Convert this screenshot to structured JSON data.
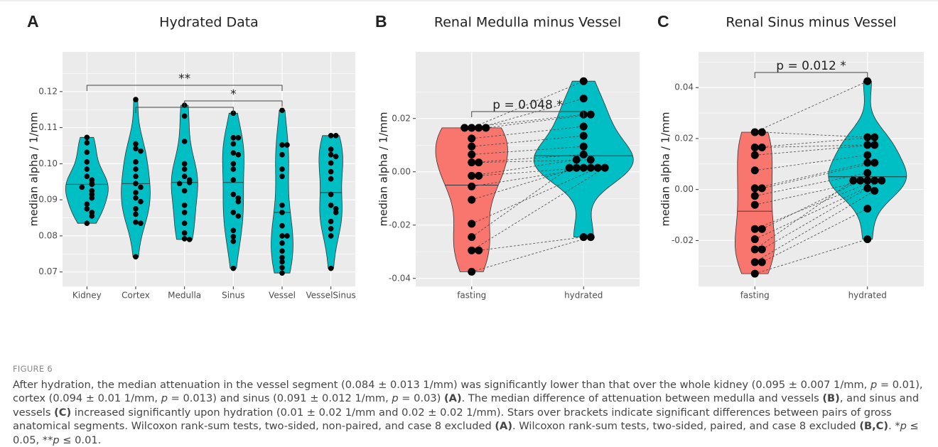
{
  "chart_data": [
    {
      "type": "violin",
      "panel": "A",
      "title": "Hydrated Data",
      "ylabel": "median alpha / 1/mm",
      "categories": [
        "Kidney",
        "Cortex",
        "Medulla",
        "Sinus",
        "Vessel",
        "VesselSinus"
      ],
      "colors": [
        "#00bfc4",
        "#00bfc4",
        "#00bfc4",
        "#00bfc4",
        "#00bfc4",
        "#00bfc4"
      ],
      "groups": [
        {
          "values": [
            0.1073,
            0.1058,
            0.1032,
            0.1005,
            0.0985,
            0.0965,
            0.0955,
            0.0945,
            0.0943,
            0.0935,
            0.0925,
            0.0915,
            0.0905,
            0.0888,
            0.0875,
            0.0865,
            0.0855,
            0.0835
          ],
          "median": 0.0943
        },
        {
          "values": [
            0.1178,
            0.1055,
            0.1042,
            0.1035,
            0.1005,
            0.0985,
            0.0965,
            0.0945,
            0.0935,
            0.092,
            0.0905,
            0.0895,
            0.0875,
            0.086,
            0.0838,
            0.0835,
            0.0742
          ],
          "median": 0.0945
        },
        {
          "values": [
            0.1162,
            0.1132,
            0.1062,
            0.1,
            0.0985,
            0.0965,
            0.0955,
            0.0948,
            0.0945,
            0.0925,
            0.0885,
            0.0865,
            0.0835,
            0.0808,
            0.0792,
            0.079
          ],
          "median": 0.0948
        },
        {
          "values": [
            0.114,
            0.1072,
            0.1072,
            0.1055,
            0.103,
            0.1025,
            0.1,
            0.0985,
            0.0955,
            0.0915,
            0.0905,
            0.0895,
            0.0865,
            0.0855,
            0.0815,
            0.0798,
            0.0785,
            0.071
          ],
          "median": 0.0948
        },
        {
          "values": [
            0.1148,
            0.1052,
            0.1052,
            0.1025,
            0.0985,
            0.0965,
            0.0885,
            0.0865,
            0.0828,
            0.08,
            0.08,
            0.078,
            0.0758,
            0.074,
            0.0728,
            0.0712,
            0.0697
          ],
          "median": 0.0865
        },
        {
          "values": [
            0.1078,
            0.1078,
            0.104,
            0.1025,
            0.102,
            0.1002,
            0.0978,
            0.0958,
            0.0915,
            0.0885,
            0.0875,
            0.0865,
            0.084,
            0.082,
            0.08,
            0.071
          ],
          "median": 0.092
        }
      ],
      "annotations": [
        "**",
        "*"
      ],
      "ylim": [
        0.066,
        0.131
      ],
      "yticks": [
        0.07,
        0.08,
        0.09,
        {
          "value": 0.1,
          "label": "0.10"
        },
        0.11,
        0.12
      ],
      "grid": true,
      "paired": false
    },
    {
      "type": "violin",
      "panel": "B",
      "title": "Renal Medulla minus Vessel",
      "ylabel": "median alpha / 1/mm",
      "categories": [
        "fasting",
        "hydrated"
      ],
      "colors": [
        "#f8766d",
        "#00bfc4"
      ],
      "groups": [
        {
          "values": [
            0.0165,
            0.0165,
            0.0165,
            0.0165,
            0.0125,
            0.0095,
            0.0065,
            0.0035,
            0.0035,
            -0.0015,
            -0.0015,
            -0.0055,
            -0.0105,
            -0.0195,
            -0.0245,
            -0.0295,
            -0.0295,
            -0.0375
          ],
          "median": -0.005
        },
        {
          "values": [
            0.034,
            0.0275,
            0.0215,
            0.0215,
            0.017,
            0.0135,
            0.0095,
            0.0065,
            0.0045,
            0.0045,
            0.0015,
            0.0015,
            0.0015,
            0.0015,
            0.0015,
            0.0015,
            -0.0245,
            -0.0245
          ],
          "median": 0.006
        }
      ],
      "annotations": [
        "p = 0.048 *"
      ],
      "ylim": [
        -0.043,
        0.045
      ],
      "yticks": [
        -0.04,
        -0.02,
        {
          "value": 0,
          "label": "0.00"
        },
        0.02
      ],
      "grid": true,
      "paired": true
    },
    {
      "type": "violin",
      "panel": "C",
      "title": "Renal Sinus minus Vessel",
      "ylabel": "median alpha / 1/mm",
      "categories": [
        "fasting",
        "hydrated"
      ],
      "colors": [
        "#f8766d",
        "#00bfc4"
      ],
      "groups": [
        {
          "values": [
            0.0225,
            0.0225,
            0.0165,
            0.0165,
            0.0135,
            0.0075,
            0.0005,
            0.0005,
            -0.0025,
            -0.006,
            -0.0155,
            -0.0155,
            -0.0195,
            -0.0235,
            -0.0235,
            -0.0285,
            -0.0285,
            -0.033
          ],
          "median": -0.0085
        },
        {
          "values": [
            0.0425,
            0.0205,
            0.0205,
            0.0175,
            0.0175,
            0.0135,
            0.0105,
            0.0105,
            0.0065,
            0.0035,
            0.0035,
            0.0035,
            0.0035,
            0.0035,
            0.0005,
            -0.0005,
            -0.0075,
            -0.0195
          ],
          "median": 0.005
        }
      ],
      "annotations": [
        "p = 0.012 *"
      ],
      "ylim": [
        -0.038,
        0.054
      ],
      "yticks": [
        -0.02,
        {
          "value": 0,
          "label": "0.00"
        },
        0.02,
        0.04
      ],
      "grid": true,
      "paired": true
    }
  ],
  "figure": {
    "label": "FIGURE 6",
    "caption": [
      {
        "text": "After hydration, the median attenuation in the vessel segment (0.084 ± 0.013 1/mm) was significantly lower than that over the whole kidney (0.095 ± 0.007 1/mm, ",
        "style": "plain"
      },
      {
        "text": "p",
        "style": "italic"
      },
      {
        "text": " = 0.01), cortex (0.094 ± 0.01 1/mm, ",
        "style": "plain"
      },
      {
        "text": "p",
        "style": "italic"
      },
      {
        "text": " = 0.013) and sinus (0.091 ± 0.012 1/mm, ",
        "style": "plain"
      },
      {
        "text": "p",
        "style": "italic"
      },
      {
        "text": " = 0.03) ",
        "style": "plain"
      },
      {
        "text": "(A)",
        "style": "bold"
      },
      {
        "text": ". The median difference of attenuation between medulla and vessels ",
        "style": "plain"
      },
      {
        "text": "(B)",
        "style": "bold"
      },
      {
        "text": ", and sinus and vessels ",
        "style": "plain"
      },
      {
        "text": "(C)",
        "style": "bold"
      },
      {
        "text": " increased significantly upon hydration (0.01 ± 0.02 1/mm and 0.02 ± 0.02 1/mm). Stars over brackets indicate significant differences between pairs of gross anatomical segments. Wilcoxon rank-sum tests, two-sided, non-paired, and case 8 excluded ",
        "style": "plain"
      },
      {
        "text": "(A)",
        "style": "bold"
      },
      {
        "text": ". Wilcoxon rank-sum tests, two-sided, paired, and case 8 excluded ",
        "style": "plain"
      },
      {
        "text": "(B,C)",
        "style": "bold"
      },
      {
        "text": ". *",
        "style": "plain"
      },
      {
        "text": "p",
        "style": "italic"
      },
      {
        "text": " ≤ 0.05, **",
        "style": "plain"
      },
      {
        "text": "p",
        "style": "italic"
      },
      {
        "text": " ≤ 0.01.",
        "style": "plain"
      }
    ]
  }
}
